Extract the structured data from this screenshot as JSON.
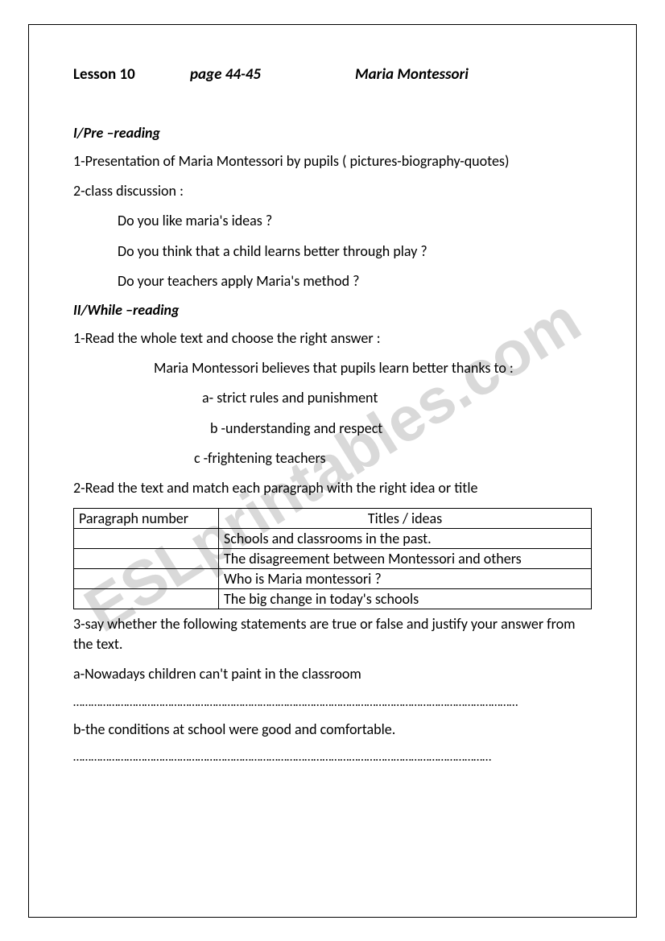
{
  "watermark": "ESLprintables.com",
  "header": {
    "lesson": "Lesson 10",
    "page": "page 44-45",
    "title": "Maria Montessori"
  },
  "sec1": {
    "heading": "I/Pre –reading",
    "item1": "1-Presentation of Maria Montessori by pupils ( pictures-biography-quotes)",
    "item2": "2-class discussion :",
    "q1": "Do you like maria's ideas ?",
    "q2": "Do you think that a child learns better through play ?",
    "q3": "Do your teachers apply Maria's method ?"
  },
  "sec2": {
    "heading": "II/While –reading",
    "item1": "1-Read the whole text and choose the right  answer :",
    "stem": "Maria Montessori believes that pupils learn better thanks to :",
    "opt_a": "a-  strict rules and punishment",
    "opt_b": "b -understanding and respect",
    "opt_c": "c  -frightening teachers",
    "item2": "2-Read the text and match each paragraph with the right idea or title",
    "table": {
      "hdr_para": "Paragraph number",
      "hdr_title": "Titles / ideas",
      "rows": [
        "Schools and classrooms in the past.",
        "The disagreement between Montessori and others",
        "Who is Maria montessori ?",
        "The big change in today's schools"
      ]
    },
    "item3": "3-say whether the following statements are true or false and justify your answer from the text.",
    "tf_a": "a-Nowadays children can't paint in the classroom",
    "tf_b": "b-the conditions at school were good and comfortable.",
    "dots1": "……………………………………………………………………………………………………………………………………",
    "dots2": "……………………………………………………………………………………………………………………………"
  },
  "colors": {
    "text": "#000000",
    "bg": "#ffffff",
    "watermark": "#d9d9d9",
    "border": "#000000"
  }
}
